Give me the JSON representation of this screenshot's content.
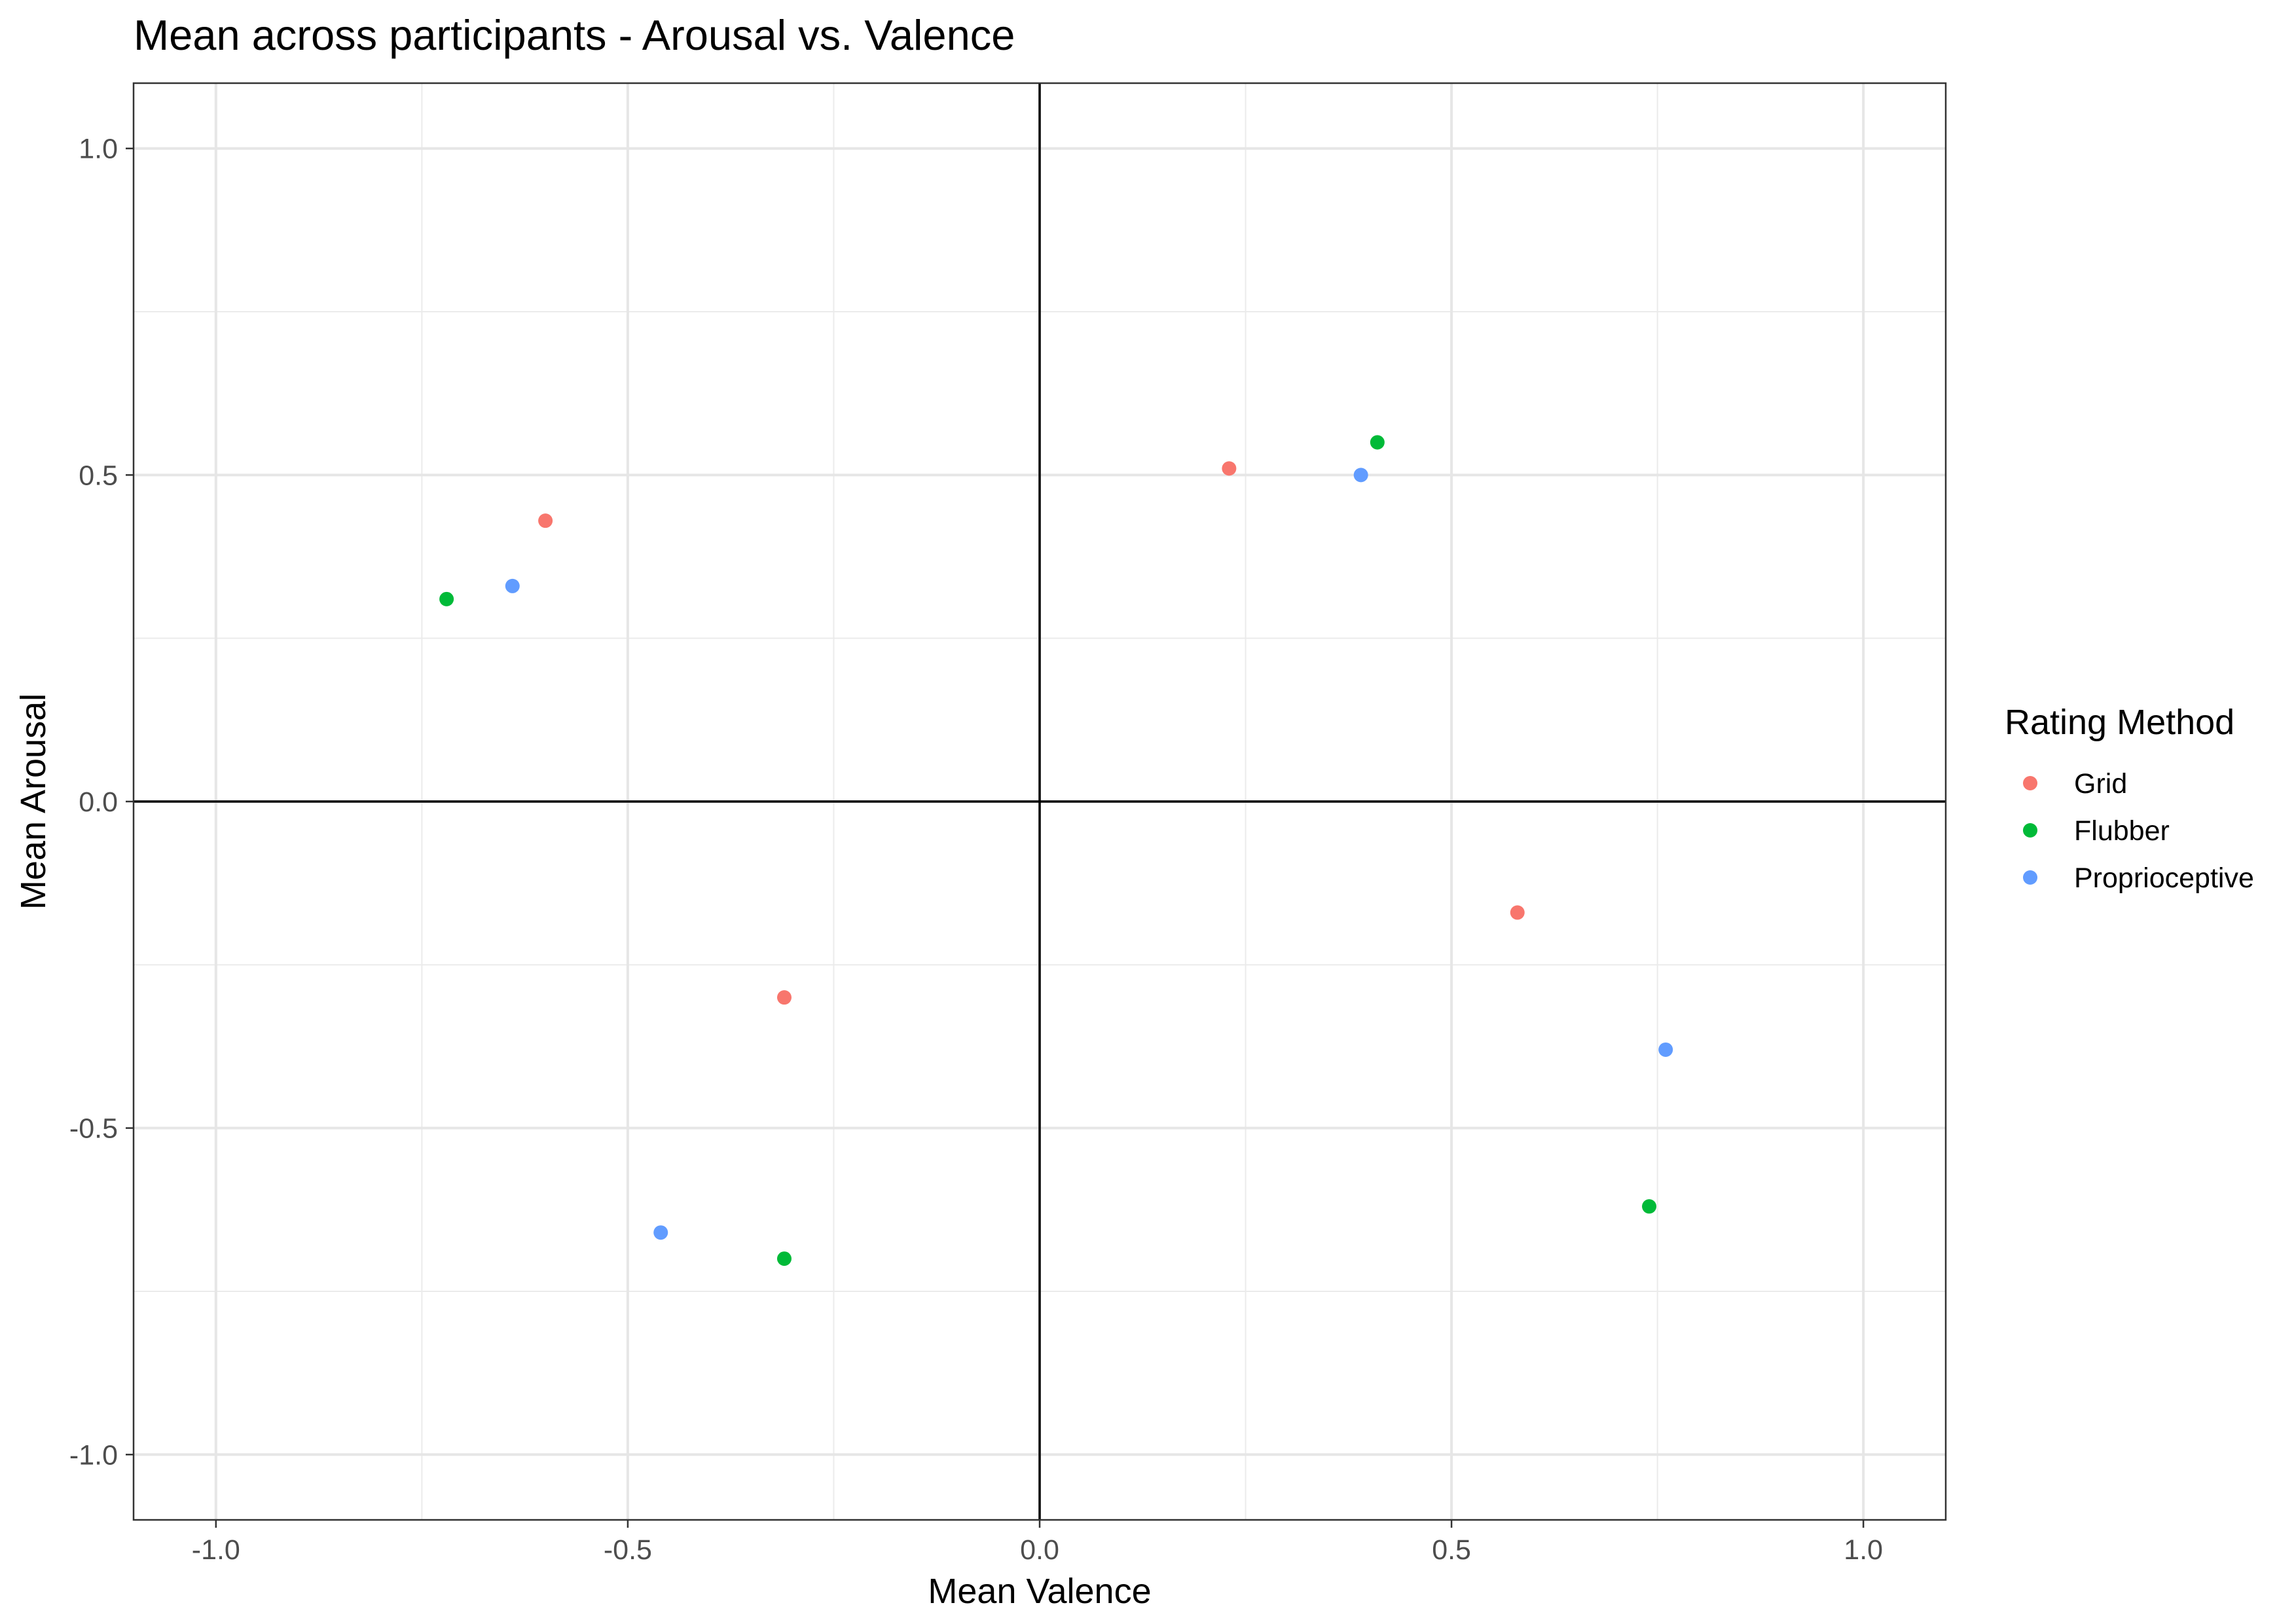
{
  "chart_data": {
    "type": "scatter",
    "title": "Mean across participants - Arousal vs. Valence",
    "xlabel": "Mean Valence",
    "ylabel": "Mean Arousal",
    "xlim": [
      -1.1,
      1.1
    ],
    "ylim": [
      -1.1,
      1.1
    ],
    "x_ticks": [
      -1.0,
      -0.5,
      0.0,
      0.5,
      1.0
    ],
    "y_ticks": [
      -1.0,
      -0.5,
      0.0,
      0.5,
      1.0
    ],
    "x_tick_labels": [
      "-1.0",
      "-0.5",
      "0.0",
      "0.5",
      "1.0"
    ],
    "y_tick_labels": [
      "-1.0",
      "-0.5",
      "0.0",
      "0.5",
      "1.0"
    ],
    "grid": true,
    "reference_lines": {
      "x": 0,
      "y": 0
    },
    "legend": {
      "title": "Rating Method",
      "placement": "right"
    },
    "series": [
      {
        "name": "Grid",
        "color": "#F8766D",
        "points": [
          {
            "x": -0.6,
            "y": 0.43
          },
          {
            "x": 0.23,
            "y": 0.51
          },
          {
            "x": -0.31,
            "y": -0.3
          },
          {
            "x": 0.58,
            "y": -0.17
          }
        ]
      },
      {
        "name": "Flubber",
        "color": "#00BA38",
        "points": [
          {
            "x": -0.72,
            "y": 0.31
          },
          {
            "x": 0.41,
            "y": 0.55
          },
          {
            "x": -0.31,
            "y": -0.7
          },
          {
            "x": 0.74,
            "y": -0.62
          }
        ]
      },
      {
        "name": "Proprioceptive",
        "color": "#619CFF",
        "points": [
          {
            "x": -0.64,
            "y": 0.33
          },
          {
            "x": 0.39,
            "y": 0.5
          },
          {
            "x": -0.46,
            "y": -0.66
          },
          {
            "x": 0.76,
            "y": -0.38
          }
        ]
      }
    ]
  }
}
